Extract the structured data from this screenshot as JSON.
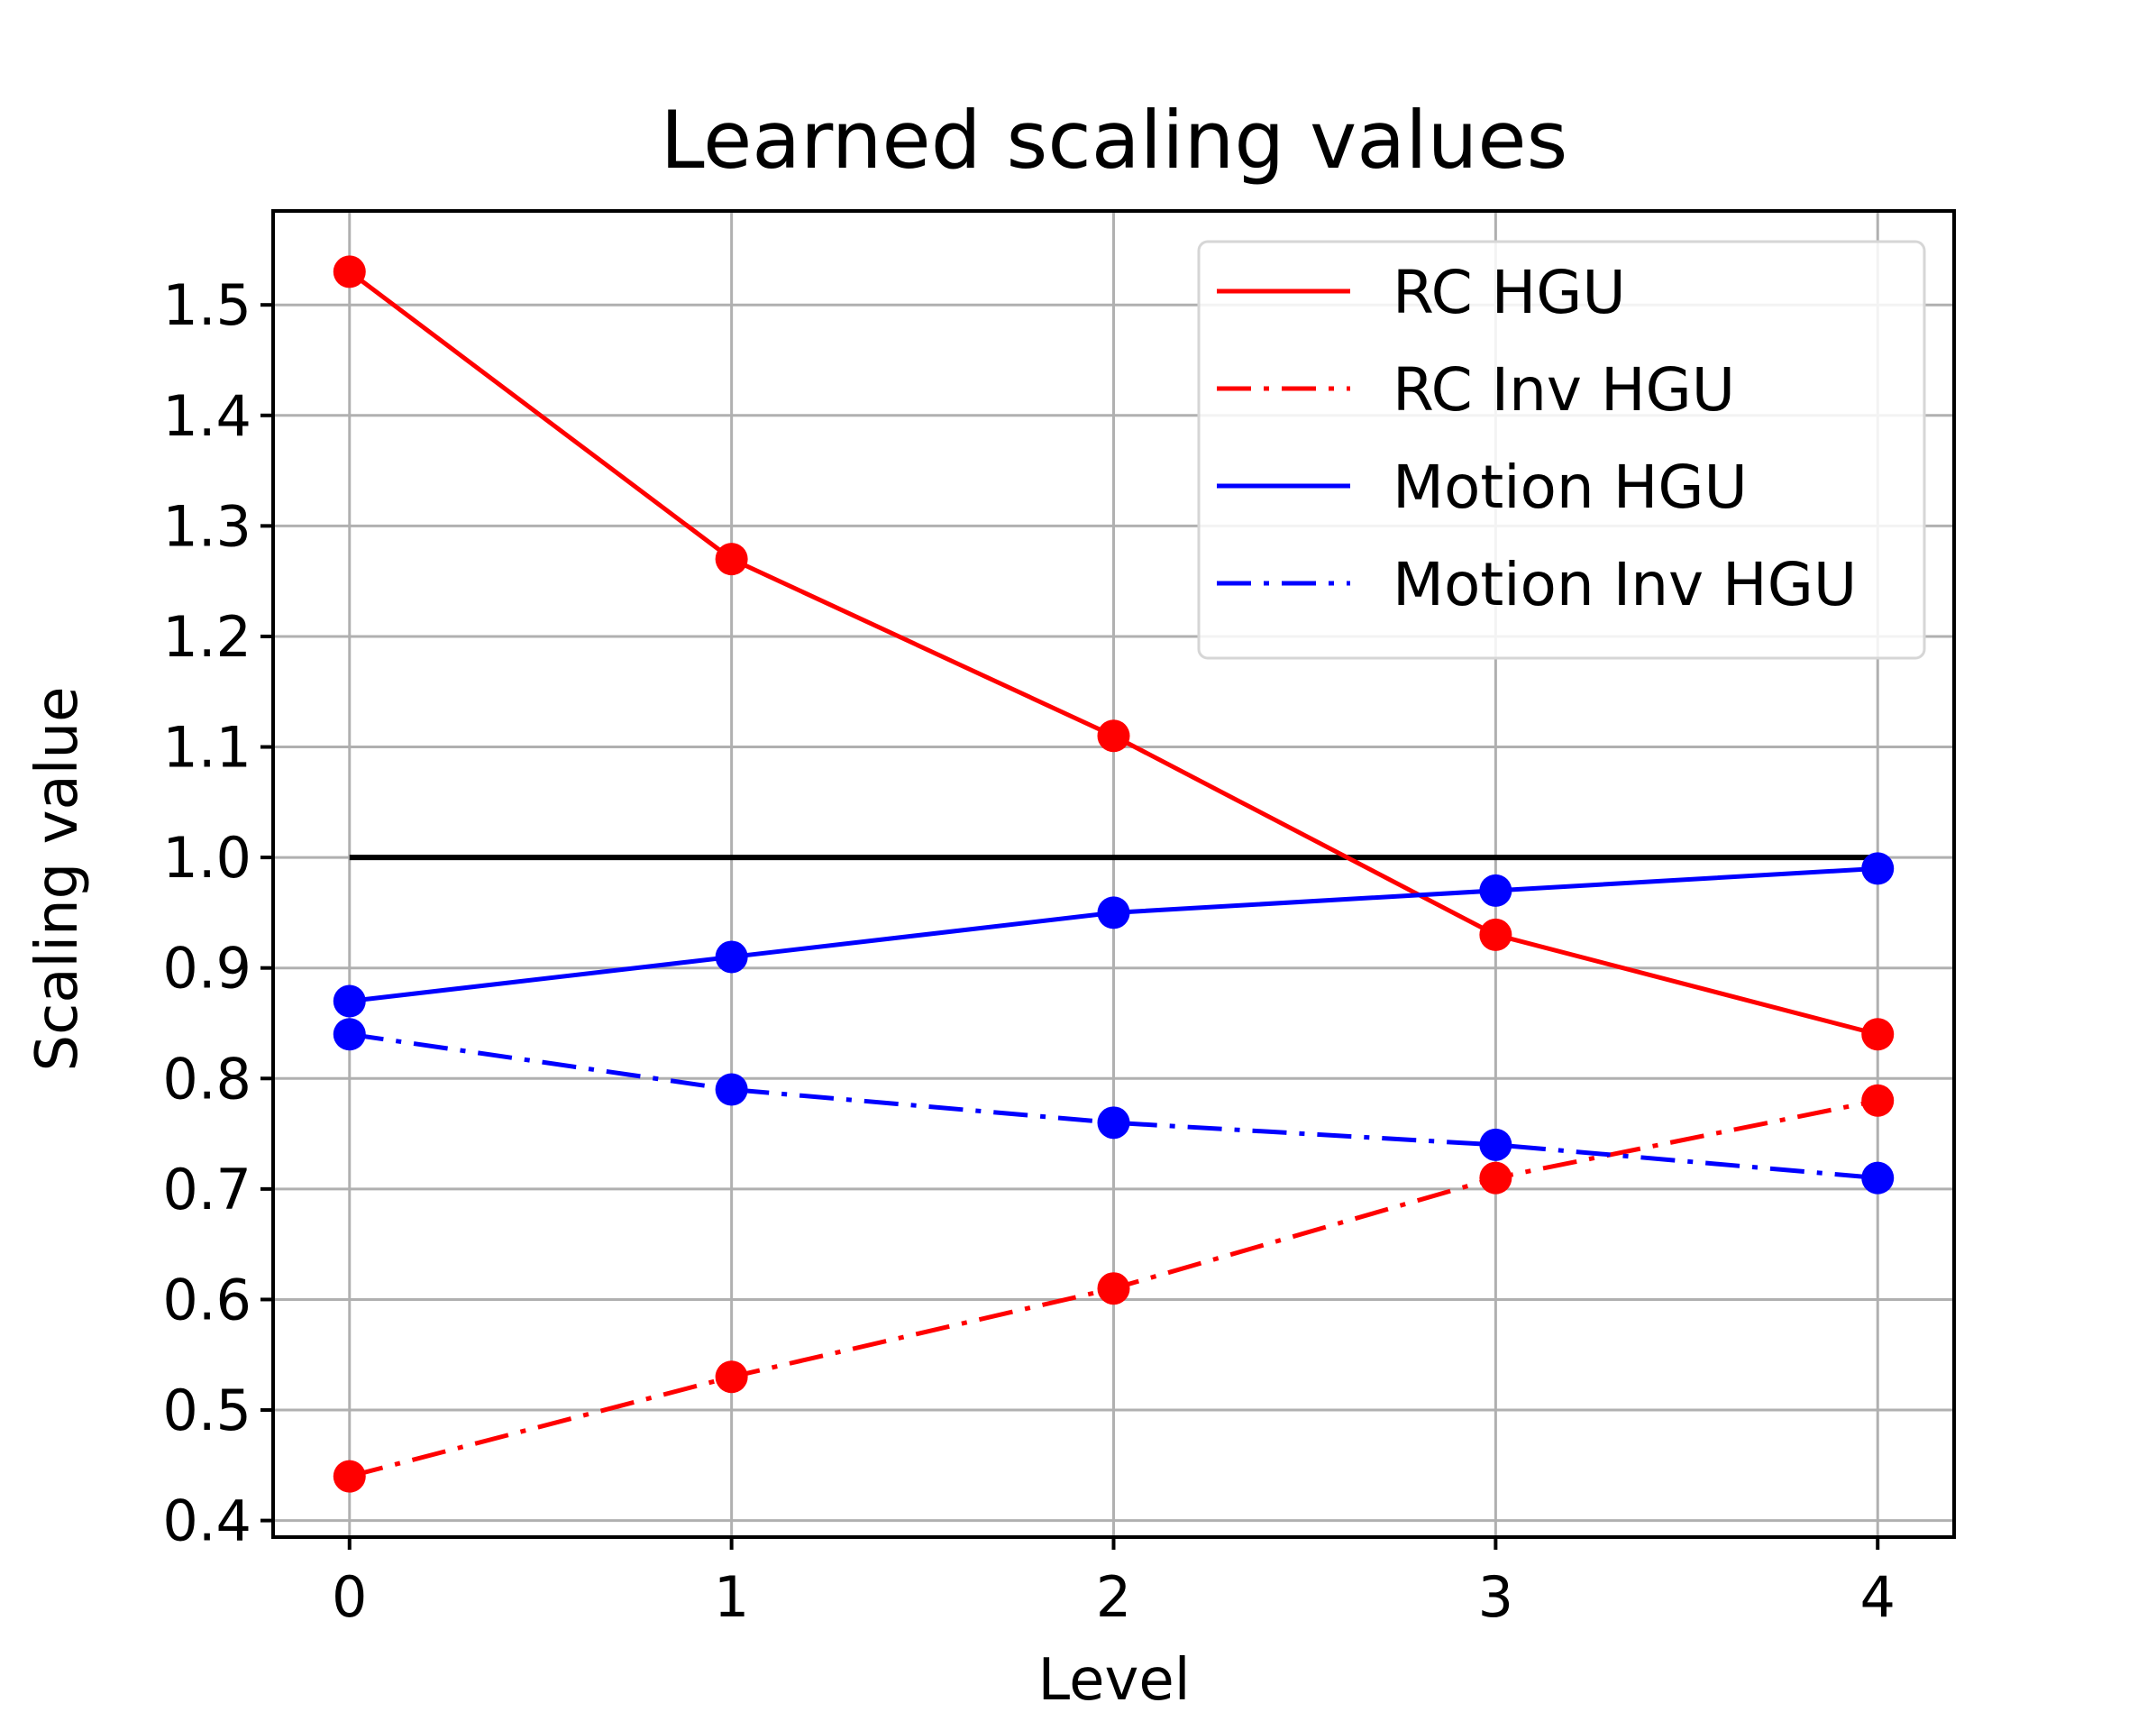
{
  "chart_data": {
    "type": "line",
    "title": "Learned scaling values",
    "xlabel": "Level",
    "ylabel": "Scaling value",
    "x": [
      0,
      1,
      2,
      3,
      4
    ],
    "x_ticks": [
      "0",
      "1",
      "2",
      "3",
      "4"
    ],
    "y_ticks": [
      "0.4",
      "0.5",
      "0.6",
      "0.7",
      "0.8",
      "0.9",
      "1.0",
      "1.1",
      "1.2",
      "1.3",
      "1.4",
      "1.5"
    ],
    "xlim": [
      -0.2,
      4.2
    ],
    "ylim": [
      0.385,
      1.585
    ],
    "grid": true,
    "legend_position": "top-right",
    "reference_line": {
      "y": 1.0,
      "x_range": [
        0,
        4
      ],
      "color": "#000000"
    },
    "series": [
      {
        "name": "RC HGU",
        "values": [
          1.53,
          1.27,
          1.11,
          0.93,
          0.84
        ],
        "color": "#ff0000",
        "style": "solid",
        "marker": "circle"
      },
      {
        "name": "RC Inv HGU",
        "values": [
          0.44,
          0.53,
          0.61,
          0.71,
          0.78
        ],
        "color": "#ff0000",
        "style": "dashdot",
        "marker": "circle"
      },
      {
        "name": "Motion HGU",
        "values": [
          0.87,
          0.91,
          0.95,
          0.97,
          0.99
        ],
        "color": "#0000ff",
        "style": "solid",
        "marker": "circle"
      },
      {
        "name": "Motion Inv HGU",
        "values": [
          0.84,
          0.79,
          0.76,
          0.74,
          0.71
        ],
        "color": "#0000ff",
        "style": "dashdot",
        "marker": "circle"
      }
    ]
  }
}
